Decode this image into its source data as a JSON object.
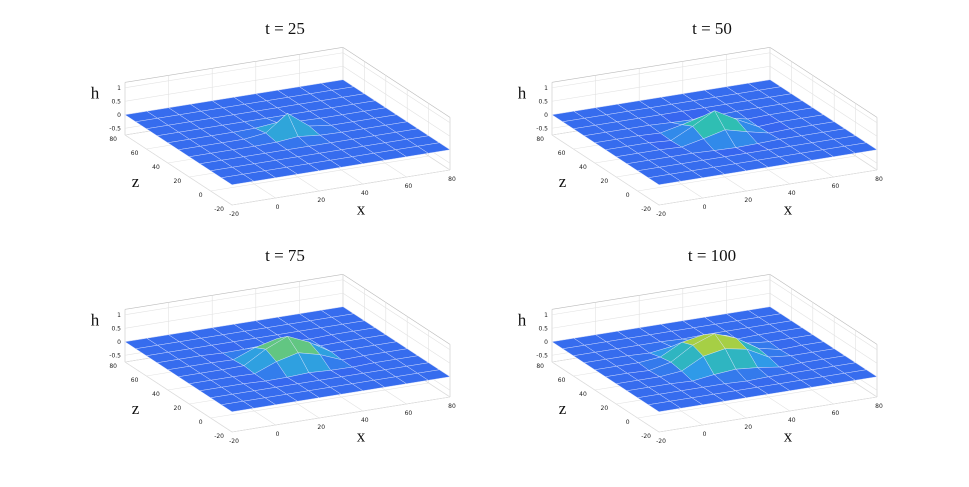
{
  "chart_data": [
    {
      "type": "surface",
      "title": "t = 25",
      "xlabel": "x",
      "zlabel": "z",
      "hlabel": "h",
      "x": [
        -20,
        -10,
        0,
        10,
        20,
        30,
        40,
        50,
        60,
        70,
        80
      ],
      "z": [
        -20,
        -10,
        0,
        10,
        20,
        30,
        40,
        50,
        60,
        70,
        80
      ],
      "h": [
        [
          0,
          0,
          0,
          0,
          0,
          0,
          0,
          0,
          0,
          0,
          0
        ],
        [
          0,
          0,
          0,
          0,
          0,
          0,
          0,
          0,
          0,
          0,
          0
        ],
        [
          0,
          0,
          0,
          0,
          0,
          0,
          0,
          0,
          0,
          0,
          0
        ],
        [
          0,
          0,
          0,
          0,
          0,
          0,
          0,
          0,
          0,
          0,
          0
        ],
        [
          0,
          0,
          0,
          0,
          0.02,
          0.1,
          0.02,
          0,
          0,
          0,
          0
        ],
        [
          0,
          0,
          0,
          0,
          0.1,
          0.7,
          0.1,
          0,
          0,
          0,
          0
        ],
        [
          0,
          0,
          0,
          0,
          0.02,
          0.1,
          0.02,
          0,
          0,
          0,
          0
        ],
        [
          0,
          0,
          0,
          0,
          0,
          0,
          0,
          0,
          0,
          0,
          0
        ],
        [
          0,
          0,
          0,
          0,
          0,
          0,
          0,
          0,
          0,
          0,
          0
        ],
        [
          0,
          0,
          0,
          0,
          0,
          0,
          0,
          0,
          0,
          0,
          0
        ],
        [
          0,
          0,
          0,
          0,
          0,
          0,
          0,
          0,
          0,
          0,
          0
        ]
      ],
      "xlim": [
        -20,
        80
      ],
      "zlim": [
        -20,
        80
      ],
      "hlim": [
        -0.75,
        1.2
      ],
      "xticks": [
        -20,
        0,
        20,
        40,
        60,
        80
      ],
      "zticks": [
        -20,
        0,
        20,
        40,
        60,
        80
      ],
      "hticks": [
        -0.5,
        0,
        0.5,
        1
      ],
      "colormap": [
        "#3a4ff2",
        "#2f9be8",
        "#2fc0b0",
        "#a6cf45",
        "#f6e23a"
      ],
      "grid": true
    },
    {
      "type": "surface",
      "title": "t = 50",
      "xlabel": "x",
      "zlabel": "z",
      "hlabel": "h",
      "x": [
        -20,
        -10,
        0,
        10,
        20,
        30,
        40,
        50,
        60,
        70,
        80
      ],
      "z": [
        -20,
        -10,
        0,
        10,
        20,
        30,
        40,
        50,
        60,
        70,
        80
      ],
      "h": [
        [
          0,
          0,
          0,
          0,
          0,
          0,
          0,
          0,
          0,
          0,
          0
        ],
        [
          0,
          0,
          0,
          0,
          0,
          0,
          0,
          0,
          0,
          0,
          0
        ],
        [
          0,
          0,
          0,
          0,
          0,
          0,
          0,
          0,
          0,
          0,
          0
        ],
        [
          0,
          0,
          0,
          0,
          -0.03,
          -0.05,
          -0.03,
          0,
          0,
          0,
          0
        ],
        [
          0,
          0,
          0,
          -0.03,
          0.15,
          0.35,
          0.15,
          -0.03,
          0,
          0,
          0
        ],
        [
          0,
          0,
          0,
          -0.05,
          0.35,
          0.8,
          0.35,
          -0.05,
          0,
          0,
          0
        ],
        [
          0,
          0,
          0,
          -0.03,
          0.15,
          0.35,
          0.15,
          -0.03,
          0,
          0,
          0
        ],
        [
          0,
          0,
          0,
          0,
          -0.03,
          -0.05,
          -0.03,
          0,
          0,
          0,
          0
        ],
        [
          0,
          0,
          0,
          0,
          0,
          0,
          0,
          0,
          0,
          0,
          0
        ],
        [
          0,
          0,
          0,
          0,
          0,
          0,
          0,
          0,
          0,
          0,
          0
        ],
        [
          0,
          0,
          0,
          0,
          0,
          0,
          0,
          0,
          0,
          0,
          0
        ]
      ],
      "xlim": [
        -20,
        80
      ],
      "zlim": [
        -20,
        80
      ],
      "hlim": [
        -0.75,
        1.2
      ],
      "xticks": [
        -20,
        0,
        20,
        40,
        60,
        80
      ],
      "zticks": [
        -20,
        0,
        20,
        40,
        60,
        80
      ],
      "hticks": [
        -0.5,
        0,
        0.5,
        1
      ],
      "colormap": [
        "#3a4ff2",
        "#2f9be8",
        "#2fc0b0",
        "#a6cf45",
        "#f6e23a"
      ],
      "grid": true
    },
    {
      "type": "surface",
      "title": "t = 75",
      "xlabel": "x",
      "zlabel": "z",
      "hlabel": "h",
      "x": [
        -20,
        -10,
        0,
        10,
        20,
        30,
        40,
        50,
        60,
        70,
        80
      ],
      "z": [
        -20,
        -10,
        0,
        10,
        20,
        30,
        40,
        50,
        60,
        70,
        80
      ],
      "h": [
        [
          0,
          0,
          0,
          0,
          0,
          0,
          0,
          0,
          0,
          0,
          0
        ],
        [
          0,
          0,
          0,
          0,
          0,
          0,
          0,
          0,
          0,
          0,
          0
        ],
        [
          0,
          0,
          0,
          0,
          0,
          0,
          0,
          0,
          0,
          0,
          0
        ],
        [
          0,
          0,
          0,
          -0.03,
          -0.02,
          0.02,
          -0.02,
          -0.03,
          0,
          0,
          0
        ],
        [
          0,
          0,
          0,
          -0.02,
          0.3,
          0.5,
          0.3,
          -0.02,
          0,
          0,
          0
        ],
        [
          0,
          0,
          0,
          0.02,
          0.5,
          0.85,
          0.5,
          0.02,
          0,
          0,
          0
        ],
        [
          0,
          0,
          0,
          -0.02,
          0.3,
          0.5,
          0.3,
          -0.02,
          0,
          0,
          0
        ],
        [
          0,
          0,
          0,
          -0.03,
          -0.02,
          0.02,
          -0.02,
          -0.03,
          0,
          0,
          0
        ],
        [
          0,
          0,
          0,
          0,
          0,
          0,
          0,
          0,
          0,
          0,
          0
        ],
        [
          0,
          0,
          0,
          0,
          0,
          0,
          0,
          0,
          0,
          0,
          0
        ],
        [
          0,
          0,
          0,
          0,
          0,
          0,
          0,
          0,
          0,
          0,
          0
        ]
      ],
      "xlim": [
        -20,
        80
      ],
      "zlim": [
        -20,
        80
      ],
      "hlim": [
        -0.75,
        1.2
      ],
      "xticks": [
        -20,
        0,
        20,
        40,
        60,
        80
      ],
      "zticks": [
        -20,
        0,
        20,
        40,
        60,
        80
      ],
      "hticks": [
        -0.5,
        0,
        0.5,
        1
      ],
      "colormap": [
        "#3a4ff2",
        "#2f9be8",
        "#2fc0b0",
        "#a6cf45",
        "#f6e23a"
      ],
      "grid": true
    },
    {
      "type": "surface",
      "title": "t = 100",
      "xlabel": "x",
      "zlabel": "z",
      "hlabel": "h",
      "x": [
        -20,
        -10,
        0,
        10,
        20,
        30,
        40,
        50,
        60,
        70,
        80
      ],
      "z": [
        -20,
        -10,
        0,
        10,
        20,
        30,
        40,
        50,
        60,
        70,
        80
      ],
      "h": [
        [
          0,
          0,
          0,
          0,
          0,
          0,
          0,
          0,
          0,
          0,
          0
        ],
        [
          0,
          0,
          0,
          0,
          0,
          0,
          0,
          0,
          0,
          0,
          0
        ],
        [
          0,
          0,
          0,
          0,
          0,
          -0.03,
          0,
          0,
          0,
          0,
          0
        ],
        [
          0,
          0,
          0,
          -0.03,
          0.08,
          0.15,
          0.08,
          -0.03,
          0,
          0,
          0
        ],
        [
          0,
          0,
          0,
          0.08,
          0.5,
          0.65,
          0.5,
          0.08,
          0,
          0,
          0
        ],
        [
          0,
          0,
          -0.03,
          0.15,
          0.65,
          0.95,
          0.65,
          0.15,
          -0.03,
          0,
          0
        ],
        [
          0,
          0,
          0,
          0.08,
          0.5,
          0.65,
          0.5,
          0.08,
          0,
          0,
          0
        ],
        [
          0,
          0,
          0,
          -0.03,
          0.08,
          0.15,
          0.08,
          -0.03,
          0,
          0,
          0
        ],
        [
          0,
          0,
          0,
          0,
          0,
          -0.03,
          0,
          0,
          0,
          0,
          0
        ],
        [
          0,
          0,
          0,
          0,
          0,
          0,
          0,
          0,
          0,
          0,
          0
        ],
        [
          0,
          0,
          0,
          0,
          0,
          0,
          0,
          0,
          0,
          0,
          0
        ]
      ],
      "xlim": [
        -20,
        80
      ],
      "zlim": [
        -20,
        80
      ],
      "hlim": [
        -0.75,
        1.2
      ],
      "xticks": [
        -20,
        0,
        20,
        40,
        60,
        80
      ],
      "zticks": [
        -20,
        0,
        20,
        40,
        60,
        80
      ],
      "hticks": [
        -0.5,
        0,
        0.5,
        1
      ],
      "colormap": [
        "#3a4ff2",
        "#2f9be8",
        "#2fc0b0",
        "#a6cf45",
        "#f6e23a"
      ],
      "grid": true
    }
  ]
}
